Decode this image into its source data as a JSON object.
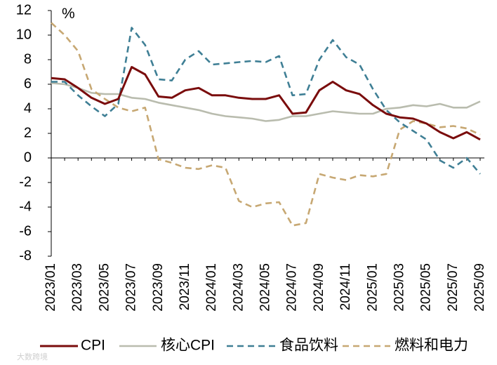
{
  "chart_data": {
    "type": "line",
    "title": "",
    "unit_label": "%",
    "xlabel": "",
    "ylabel": "",
    "ylim": [
      -8,
      12
    ],
    "y_ticks": [
      12,
      10,
      8,
      6,
      4,
      2,
      0,
      -2,
      -4,
      -6,
      -8
    ],
    "x_tick_labels": [
      "2023/01",
      "2023/03",
      "2023/05",
      "2023/07",
      "2023/09",
      "2023/11",
      "2024/01",
      "2024/03",
      "2024/05",
      "2024/07",
      "2024/09",
      "2024/11",
      "2025/01",
      "2025/03",
      "2025/05",
      "2025/07",
      "2025/09"
    ],
    "categories": [
      "2023/01",
      "2023/02",
      "2023/03",
      "2023/04",
      "2023/05",
      "2023/06",
      "2023/07",
      "2023/08",
      "2023/09",
      "2023/10",
      "2023/11",
      "2023/12",
      "2024/01",
      "2024/02",
      "2024/03",
      "2024/04",
      "2024/05",
      "2024/06",
      "2024/07",
      "2024/08",
      "2024/09",
      "2024/10",
      "2024/11",
      "2024/12",
      "2025/01",
      "2025/02",
      "2025/03",
      "2025/04",
      "2025/05",
      "2025/06",
      "2025/07",
      "2025/08",
      "2025/09"
    ],
    "series": [
      {
        "name": "CPI",
        "color": "#7a0c0c",
        "style": "solid",
        "values": [
          6.5,
          6.4,
          5.7,
          4.9,
          4.4,
          4.8,
          7.4,
          6.8,
          5.0,
          4.9,
          5.5,
          5.7,
          5.1,
          5.1,
          4.9,
          4.8,
          4.8,
          5.1,
          3.6,
          3.7,
          5.5,
          6.2,
          5.5,
          5.2,
          4.3,
          3.6,
          3.3,
          3.2,
          2.8,
          2.1,
          1.6,
          2.1,
          1.5
        ]
      },
      {
        "name": "核心CPI",
        "color": "#b9bcae",
        "style": "solid",
        "values": [
          6.1,
          6.0,
          5.7,
          5.3,
          5.2,
          5.2,
          4.9,
          4.8,
          4.5,
          4.3,
          4.1,
          3.9,
          3.6,
          3.4,
          3.3,
          3.2,
          3.0,
          3.1,
          3.4,
          3.4,
          3.6,
          3.8,
          3.7,
          3.6,
          3.6,
          4.0,
          4.1,
          4.3,
          4.2,
          4.4,
          4.1,
          4.1,
          4.6
        ]
      },
      {
        "name": "食品饮料",
        "color": "#3f7f95",
        "style": "dash",
        "values": [
          6.2,
          6.2,
          5.1,
          4.2,
          3.4,
          4.4,
          10.6,
          9.2,
          6.4,
          6.3,
          8.0,
          8.7,
          7.6,
          7.7,
          7.8,
          7.9,
          7.8,
          8.3,
          5.1,
          5.2,
          8.0,
          9.6,
          8.2,
          7.6,
          5.6,
          3.9,
          2.9,
          2.2,
          1.5,
          -0.2,
          -0.8,
          0.0,
          -1.3
        ]
      },
      {
        "name": "燃料和电力",
        "color": "#c7a873",
        "style": "dash",
        "values": [
          11.0,
          10.0,
          8.7,
          5.6,
          4.8,
          4.1,
          3.8,
          4.1,
          -0.1,
          -0.4,
          -0.8,
          -0.9,
          -0.6,
          -0.8,
          -3.5,
          -4.0,
          -3.7,
          -3.6,
          -5.5,
          -5.3,
          -1.3,
          -1.6,
          -1.8,
          -1.4,
          -1.5,
          -1.3,
          2.3,
          3.0,
          2.8,
          2.5,
          2.6,
          2.4,
          1.9
        ]
      }
    ],
    "legend_position": "bottom"
  },
  "watermark": "大数跨境"
}
